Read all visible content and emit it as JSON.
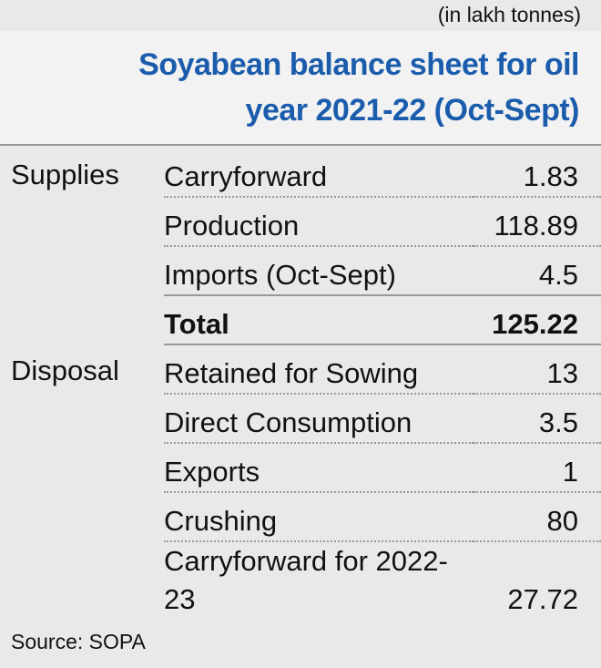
{
  "unit_note": "(in lakh tonnes)",
  "title": "Soyabean balance sheet for oil year 2021-22 (Oct-Sept)",
  "sections": [
    {
      "label": "Supplies",
      "rows": [
        {
          "item": "Carryforward",
          "value": 1.83
        },
        {
          "item": "Production",
          "value": 118.89
        },
        {
          "item": "Imports (Oct-Sept)",
          "value": 4.5
        }
      ],
      "total": {
        "item": "Total",
        "value": 125.22
      }
    },
    {
      "label": "Disposal",
      "rows": [
        {
          "item": "Retained for Sowing",
          "value": 13
        },
        {
          "item": "Direct Consumption",
          "value": 3.5
        },
        {
          "item": "Exports",
          "value": 1
        },
        {
          "item": "Crushing",
          "value": 80
        },
        {
          "item": "Carryforward for 2022-23",
          "value": 27.72
        }
      ]
    }
  ],
  "source": "Source: SOPA"
}
